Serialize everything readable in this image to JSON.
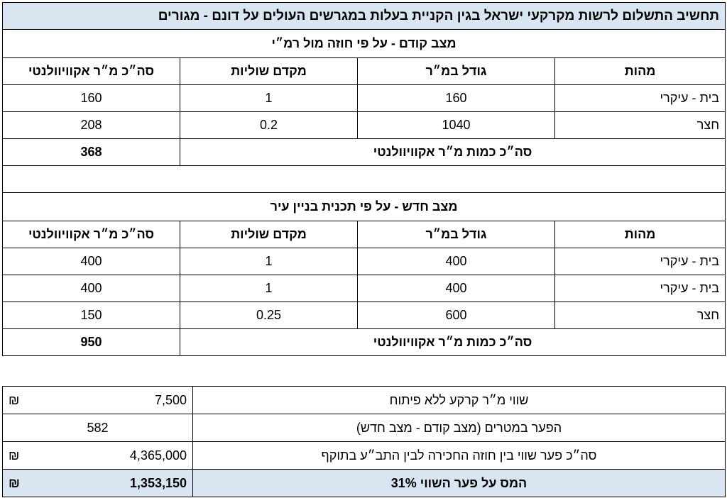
{
  "title": "תחשיב התשלום לרשות מקרקעי ישראל בגין הקניית בעלות במגרשים העולים על דונם - מגורים",
  "columns": {
    "type": "מהות",
    "size": "גודל במ״ר",
    "coefficient": "מקדם שוליות",
    "equivalent": "סה״כ מ״ר אקוויוולנטי"
  },
  "previous": {
    "heading": "מצב קודם - על פי חוזה מול רמ״י",
    "rows": [
      {
        "type": "בית - עיקרי",
        "size": "160",
        "coefficient": "1",
        "equivalent": "160"
      },
      {
        "type": "חצר",
        "size": "1040",
        "coefficient": "0.2",
        "equivalent": "208"
      }
    ],
    "total_label": "סה״כ כמות מ״ר אקוויוולנטי",
    "total_value": "368"
  },
  "new": {
    "heading": "מצב חדש - על פי תכנית בניין עיר",
    "rows": [
      {
        "type": "בית - עיקרי",
        "size": "400",
        "coefficient": "1",
        "equivalent": "400"
      },
      {
        "type": "בית - עיקרי",
        "size": "400",
        "coefficient": "1",
        "equivalent": "400"
      },
      {
        "type": "חצר",
        "size": "600",
        "coefficient": "0.25",
        "equivalent": "150"
      }
    ],
    "total_label": "סה״כ כמות מ״ר אקוויוולנטי",
    "total_value": "950"
  },
  "summary": {
    "currency": "₪",
    "land_value_label": "שווי מ״ר קרקע ללא פיתוח",
    "land_value": "7,500",
    "gap_meters_label": "הפער במטרים (מצב קודם - מצב חדש)",
    "gap_meters": "582",
    "total_gap_label": "סה״כ פער שווי בין חוזה החכירה לבין התב״ע בתוקף",
    "total_gap": "4,365,000",
    "tax_label": "המס על פער השווי 31%",
    "tax_value": "1,353,150"
  }
}
